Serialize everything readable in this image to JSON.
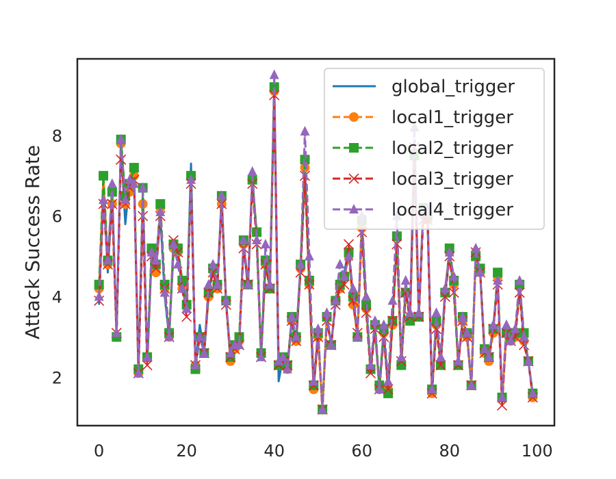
{
  "chart_data": {
    "type": "line",
    "title": "",
    "xlabel": "",
    "ylabel": "Attack Success Rate",
    "xlim": [
      -4.95,
      103.95
    ],
    "ylim": [
      0.8,
      9.9
    ],
    "xticks": [
      "0",
      "20",
      "40",
      "60",
      "80",
      "100"
    ],
    "yticks": [
      "2",
      "4",
      "6",
      "8"
    ],
    "grid": false,
    "legend_position": "top-right",
    "x": [
      0,
      1,
      2,
      3,
      4,
      5,
      6,
      7,
      8,
      9,
      10,
      11,
      12,
      13,
      14,
      15,
      16,
      17,
      18,
      19,
      20,
      21,
      22,
      23,
      24,
      25,
      26,
      27,
      28,
      29,
      30,
      31,
      32,
      33,
      34,
      35,
      36,
      37,
      38,
      39,
      40,
      41,
      42,
      43,
      44,
      45,
      46,
      47,
      48,
      49,
      50,
      51,
      52,
      53,
      54,
      55,
      56,
      57,
      58,
      59,
      60,
      61,
      62,
      63,
      64,
      65,
      66,
      67,
      68,
      69,
      70,
      71,
      72,
      73,
      74,
      75,
      76,
      77,
      78,
      79,
      80,
      81,
      82,
      83,
      84,
      85,
      86,
      87,
      88,
      89,
      90,
      91,
      92,
      93,
      94,
      95,
      96,
      97,
      98,
      99
    ],
    "series": [
      {
        "name": "global_trigger",
        "color": "#1f77b4",
        "marker": "none",
        "style": "solid",
        "values": [
          3.8,
          6.8,
          4.6,
          6.5,
          3.1,
          7.8,
          5.8,
          6.9,
          6.9,
          2.1,
          6.4,
          2.4,
          5.0,
          4.6,
          6.0,
          4.0,
          3.0,
          5.1,
          5.1,
          4.2,
          3.7,
          7.3,
          2.3,
          3.3,
          2.6,
          4.0,
          4.8,
          4.2,
          6.4,
          3.9,
          2.4,
          2.7,
          2.8,
          5.3,
          4.2,
          6.9,
          5.5,
          2.5,
          4.8,
          4.2,
          9.1,
          1.9,
          2.5,
          2.2,
          3.4,
          2.8,
          4.7,
          7.1,
          4.2,
          1.7,
          3.1,
          1.2,
          3.5,
          2.8,
          3.9,
          4.2,
          4.6,
          5.2,
          3.8,
          3.1,
          5.8,
          3.8,
          2.2,
          3.2,
          1.7,
          3.1,
          1.7,
          3.4,
          5.4,
          2.4,
          4.2,
          3.5,
          7.6,
          3.5,
          6.1,
          5.9,
          1.7,
          3.3,
          2.4,
          4.1,
          5.0,
          4.2,
          2.4,
          3.4,
          3.1,
          1.8,
          5.1,
          4.6,
          2.6,
          2.5,
          3.2,
          4.5,
          1.4,
          3.2,
          2.9,
          3.1,
          4.2,
          2.9,
          2.4,
          1.6
        ]
      },
      {
        "name": "local1_trigger",
        "color": "#ff7f0e",
        "marker": "circle",
        "style": "dashed",
        "values": [
          4.2,
          7.0,
          4.8,
          6.3,
          3.0,
          7.8,
          6.3,
          6.6,
          7.0,
          2.1,
          6.3,
          2.5,
          5.1,
          4.6,
          6.2,
          4.2,
          3.0,
          5.2,
          5.1,
          4.2,
          3.8,
          7.0,
          2.3,
          3.0,
          2.6,
          4.0,
          4.7,
          4.2,
          6.3,
          3.9,
          2.4,
          2.7,
          2.9,
          5.3,
          4.3,
          6.9,
          5.6,
          2.6,
          4.8,
          4.2,
          9.1,
          2.3,
          2.5,
          2.2,
          3.4,
          2.9,
          4.7,
          7.2,
          4.3,
          1.7,
          3.0,
          1.2,
          3.5,
          2.8,
          3.9,
          4.2,
          4.5,
          5.0,
          3.8,
          3.0,
          5.7,
          3.7,
          2.2,
          3.3,
          1.7,
          3.1,
          1.7,
          3.3,
          5.5,
          2.3,
          4.1,
          3.4,
          7.5,
          3.5,
          6.2,
          5.9,
          1.6,
          3.3,
          2.3,
          4.1,
          5.1,
          4.3,
          2.3,
          3.4,
          3.0,
          1.8,
          5.1,
          4.6,
          2.6,
          2.4,
          3.1,
          4.5,
          1.5,
          3.1,
          2.9,
          3.0,
          4.3,
          2.9,
          2.4,
          1.5
        ]
      },
      {
        "name": "local2_trigger",
        "color": "#2ca02c",
        "marker": "square",
        "style": "dashed",
        "values": [
          4.3,
          7.0,
          4.9,
          6.6,
          3.0,
          7.9,
          6.5,
          6.8,
          7.2,
          2.2,
          6.7,
          2.5,
          5.2,
          4.8,
          6.3,
          4.3,
          3.1,
          5.3,
          5.2,
          4.4,
          3.8,
          7.0,
          2.2,
          3.0,
          2.6,
          4.1,
          4.7,
          4.3,
          6.5,
          3.9,
          2.5,
          2.8,
          3.0,
          5.4,
          4.3,
          6.9,
          5.6,
          2.6,
          4.9,
          4.2,
          9.2,
          2.3,
          2.5,
          2.3,
          3.5,
          3.0,
          4.8,
          7.4,
          4.4,
          1.8,
          3.1,
          1.2,
          3.5,
          2.8,
          3.9,
          4.3,
          4.5,
          5.1,
          4.0,
          3.0,
          5.9,
          3.8,
          2.2,
          3.3,
          1.8,
          3.2,
          1.6,
          3.4,
          5.5,
          2.3,
          4.1,
          3.4,
          7.5,
          3.5,
          6.2,
          6.0,
          1.7,
          3.4,
          2.3,
          4.1,
          5.2,
          4.4,
          2.3,
          3.5,
          3.1,
          1.8,
          5.0,
          4.7,
          2.7,
          2.5,
          3.2,
          4.6,
          1.5,
          3.1,
          3.0,
          3.1,
          4.3,
          3.1,
          2.4,
          1.6
        ]
      },
      {
        "name": "local3_trigger",
        "color": "#d62728",
        "marker": "x",
        "style": "dashed",
        "values": [
          3.9,
          6.3,
          4.8,
          6.3,
          3.1,
          7.4,
          6.3,
          6.7,
          6.9,
          2.1,
          6.0,
          2.3,
          5.0,
          4.7,
          6.0,
          4.2,
          3.0,
          5.4,
          5.1,
          4.2,
          3.5,
          6.8,
          2.3,
          3.0,
          2.6,
          4.1,
          4.6,
          4.2,
          6.3,
          3.8,
          2.5,
          2.7,
          2.8,
          5.2,
          4.3,
          6.8,
          5.3,
          2.5,
          4.8,
          4.2,
          9.0,
          2.3,
          2.4,
          2.3,
          3.4,
          2.9,
          4.6,
          7.0,
          4.3,
          1.8,
          3.0,
          1.2,
          3.4,
          2.8,
          3.8,
          4.2,
          4.3,
          5.3,
          3.9,
          3.1,
          5.6,
          3.6,
          2.1,
          3.2,
          1.7,
          3.0,
          1.7,
          3.4,
          5.3,
          2.4,
          4.1,
          3.5,
          7.7,
          3.5,
          5.9,
          5.9,
          1.6,
          3.2,
          2.3,
          4.0,
          5.0,
          4.1,
          2.3,
          3.4,
          3.0,
          1.8,
          5.1,
          4.6,
          2.6,
          2.5,
          3.2,
          4.3,
          1.3,
          3.1,
          2.9,
          3.0,
          4.1,
          2.8,
          2.4,
          1.5
        ]
      },
      {
        "name": "local4_trigger",
        "color": "#9467bd",
        "marker": "triangle",
        "style": "dashed",
        "values": [
          4.0,
          6.4,
          4.9,
          6.8,
          3.1,
          7.9,
          6.4,
          6.9,
          6.8,
          2.1,
          6.7,
          2.5,
          5.1,
          4.9,
          6.1,
          4.1,
          3.0,
          5.3,
          4.8,
          4.2,
          3.7,
          6.9,
          2.3,
          3.0,
          2.6,
          4.3,
          4.8,
          4.3,
          6.5,
          3.9,
          2.6,
          2.8,
          2.8,
          5.4,
          4.3,
          7.1,
          5.4,
          2.5,
          5.3,
          4.3,
          9.5,
          2.4,
          2.5,
          2.2,
          3.5,
          3.0,
          4.8,
          8.1,
          5.0,
          1.9,
          3.2,
          1.2,
          3.6,
          2.8,
          3.9,
          4.8,
          4.5,
          5.0,
          4.2,
          3.0,
          6.0,
          4.0,
          2.3,
          3.4,
          1.7,
          3.3,
          1.9,
          3.9,
          6.0,
          2.5,
          4.4,
          3.6,
          8.2,
          3.6,
          6.1,
          6.2,
          1.7,
          3.6,
          2.5,
          4.2,
          5.1,
          4.5,
          2.4,
          3.5,
          3.1,
          1.8,
          5.2,
          4.6,
          2.7,
          2.5,
          3.3,
          4.4,
          1.5,
          3.3,
          2.9,
          3.2,
          4.4,
          3.0,
          2.4,
          1.6
        ]
      }
    ]
  }
}
